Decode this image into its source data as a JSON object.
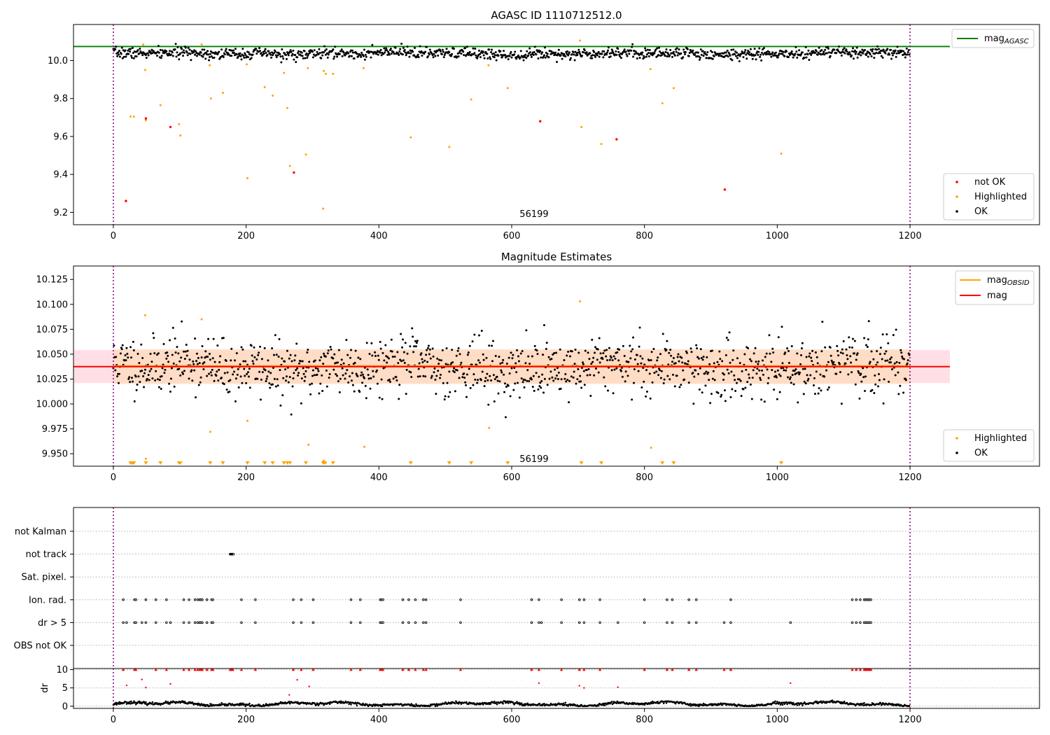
{
  "colors": {
    "ok": "#000000",
    "highlighted": "#ffa500",
    "not_ok": "#ff0000",
    "mag_agasc": "#008000",
    "mag_obsid": "#ffa500",
    "mag": "#ff0000",
    "band_obsid": "#ffdab9",
    "band_mag": "#ffc0cb",
    "period_boundary": "#800080"
  },
  "chart_data": [
    {
      "type": "scatter",
      "title": "AGASC ID 1110712512.0",
      "xlabel": "",
      "ylabel": "",
      "xlim": [
        -60,
        1395
      ],
      "ylim": [
        9.135,
        10.19
      ],
      "x_ticks": [
        0,
        200,
        400,
        600,
        800,
        1000,
        1200
      ],
      "x_tick_labels": [
        "0",
        "200",
        "400",
        "600",
        "800",
        "1000",
        "1200"
      ],
      "y_ticks": [
        9.2,
        9.4,
        9.6,
        9.8,
        10.0
      ],
      "y_tick_labels": [
        "9.2",
        "9.4",
        "9.6",
        "9.8",
        "10.0"
      ],
      "grid": false,
      "legend_placement_lines": "top-right",
      "legend_placement_points": "bottom-right",
      "annotation": {
        "text": "56199",
        "x": 600,
        "y": 9.16
      },
      "period_boundaries": [
        0,
        1200
      ],
      "lines": [
        {
          "name": "mag_AGASC",
          "label_main": "mag",
          "label_sub": "AGASC",
          "y": 10.074,
          "x_range": [
            -60,
            1260
          ],
          "color": "#008000"
        }
      ],
      "series": [
        {
          "name": "not OK",
          "color": "#ff0000",
          "points": [
            [
              19,
              9.26
            ],
            [
              49,
              9.695
            ],
            [
              86,
              9.65
            ],
            [
              272,
              9.41
            ],
            [
              643,
              9.68
            ],
            [
              758,
              9.585
            ],
            [
              921,
              9.32
            ]
          ]
        },
        {
          "name": "Highlighted",
          "color": "#ffa500",
          "points": [
            [
              26,
              9.705
            ],
            [
              31,
              9.705
            ],
            [
              45,
              10.085
            ],
            [
              48,
              9.95
            ],
            [
              49,
              9.685
            ],
            [
              71,
              9.765
            ],
            [
              99,
              9.665
            ],
            [
              101,
              9.605
            ],
            [
              133,
              10.085
            ],
            [
              145,
              9.975
            ],
            [
              147,
              9.8
            ],
            [
              165,
              9.83
            ],
            [
              201,
              9.98
            ],
            [
              202,
              9.38
            ],
            [
              228,
              9.86
            ],
            [
              240,
              9.815
            ],
            [
              257,
              9.935
            ],
            [
              262,
              9.75
            ],
            [
              266,
              9.445
            ],
            [
              290,
              9.505
            ],
            [
              293,
              9.96
            ],
            [
              316,
              9.22
            ],
            [
              317,
              9.945
            ],
            [
              320,
              9.93
            ],
            [
              331,
              9.93
            ],
            [
              377,
              9.96
            ],
            [
              448,
              9.595
            ],
            [
              506,
              9.545
            ],
            [
              539,
              9.795
            ],
            [
              565,
              9.975
            ],
            [
              594,
              9.855
            ],
            [
              703,
              10.105
            ],
            [
              705,
              9.65
            ],
            [
              735,
              9.56
            ],
            [
              809,
              9.955
            ],
            [
              827,
              9.775
            ],
            [
              844,
              9.855
            ],
            [
              1006,
              9.51
            ]
          ]
        },
        {
          "name": "OK",
          "color": "#000000",
          "generated": {
            "count": 1200,
            "x_range": [
              0,
              1200
            ],
            "y_center": 10.037,
            "y_spread": 0.017
          }
        }
      ]
    },
    {
      "type": "scatter",
      "title": "Magnitude Estimates",
      "xlabel": "",
      "ylabel": "",
      "xlim": [
        -60,
        1395
      ],
      "ylim": [
        9.9375,
        10.1385
      ],
      "x_ticks": [
        0,
        200,
        400,
        600,
        800,
        1000,
        1200
      ],
      "x_tick_labels": [
        "0",
        "200",
        "400",
        "600",
        "800",
        "1000",
        "1200"
      ],
      "y_ticks": [
        9.95,
        9.975,
        10.0,
        10.025,
        10.05,
        10.075,
        10.1,
        10.125
      ],
      "y_tick_labels": [
        "9.950",
        "9.975",
        "10.000",
        "10.025",
        "10.050",
        "10.075",
        "10.100",
        "10.125"
      ],
      "grid": false,
      "legend_placement_lines": "top-right",
      "legend_placement_points": "bottom-right",
      "annotation": {
        "text": "56199",
        "x": 600,
        "y": 9.944
      },
      "period_boundaries": [
        0,
        1200
      ],
      "bands": [
        {
          "name": "mag band",
          "y_range": [
            10.021,
            10.054
          ],
          "x_range": [
            -60,
            1260
          ],
          "color": "#ffc0cb",
          "opacity": 0.5
        },
        {
          "name": "mag_OBSID band",
          "y_range": [
            10.02,
            10.055
          ],
          "x_range": [
            0,
            1200
          ],
          "color": "#ffdab9",
          "opacity": 0.7
        }
      ],
      "lines": [
        {
          "name": "mag_OBSID",
          "label_main": "mag",
          "label_sub": "OBSID",
          "y": 10.0375,
          "x_range": [
            0,
            1200
          ],
          "color": "#ffa500"
        },
        {
          "name": "mag",
          "label_main": "mag",
          "label_sub": "",
          "y": 10.0375,
          "x_range": [
            -60,
            1260
          ],
          "color": "#ff0000"
        }
      ],
      "series": [
        {
          "name": "Highlighted",
          "color": "#ffa500",
          "points": [
            [
              48,
              10.089
            ],
            [
              49,
              9.945
            ],
            [
              133,
              10.085
            ],
            [
              146,
              9.972
            ],
            [
              202,
              9.983
            ],
            [
              294,
              9.959
            ],
            [
              317,
              9.943
            ],
            [
              320,
              9.941
            ],
            [
              378,
              9.957
            ],
            [
              566,
              9.976
            ],
            [
              703,
              10.103
            ],
            [
              810,
              9.956
            ]
          ]
        },
        {
          "name": "Highlighted_below_range",
          "color": "#ffa500",
          "x": [
            26,
            28,
            30,
            31,
            49,
            71,
            99,
            101,
            146,
            165,
            202,
            228,
            240,
            257,
            262,
            266,
            290,
            316,
            318,
            331,
            448,
            506,
            539,
            594,
            705,
            735,
            827,
            844,
            1006
          ]
        },
        {
          "name": "OK",
          "color": "#000000",
          "generated": {
            "count": 1200,
            "x_range": [
              0,
              1200
            ],
            "y_center": 10.037,
            "y_spread": 0.017
          }
        }
      ]
    },
    {
      "type": "scatter",
      "title": "",
      "xlabel": "",
      "ylabel": "",
      "xlim": [
        -60,
        1395
      ],
      "categories": [
        "not Kalman",
        "not track",
        "Sat. pixel.",
        "Ion. rad.",
        "dr > 5",
        "OBS not OK"
      ],
      "grid": "horizontal dotted",
      "period_boundaries": [
        0,
        1200
      ],
      "flags": {
        "not Kalman": [],
        "not track": [
          176,
          177,
          178,
          179,
          180,
          181
        ],
        "Sat. pixel.": [],
        "Ion. rad.": [
          15,
          32,
          34,
          49,
          64,
          80,
          106,
          114,
          123,
          127,
          130,
          132,
          134,
          141,
          148,
          150,
          193,
          214,
          271,
          283,
          301,
          358,
          372,
          402,
          404,
          406,
          436,
          445,
          455,
          467,
          471,
          523,
          630,
          641,
          675,
          702,
          709,
          733,
          800,
          834,
          842,
          867,
          878,
          930,
          1113,
          1119,
          1125,
          1131,
          1133,
          1135,
          1137,
          1139,
          1141
        ],
        "dr > 5": [
          15,
          20,
          32,
          34,
          43,
          49,
          64,
          80,
          86,
          106,
          114,
          123,
          127,
          130,
          132,
          134,
          141,
          148,
          150,
          193,
          214,
          271,
          283,
          301,
          358,
          372,
          402,
          404,
          406,
          436,
          445,
          455,
          467,
          471,
          523,
          630,
          641,
          645,
          675,
          702,
          709,
          733,
          760,
          800,
          834,
          842,
          867,
          878,
          920,
          930,
          1020,
          1113,
          1119,
          1125,
          1131,
          1133,
          1135,
          1137,
          1139,
          1141
        ],
        "OBS not OK": []
      }
    },
    {
      "type": "scatter",
      "title": "",
      "xlabel": "",
      "ylabel": "dr",
      "xlim": [
        -60,
        1395
      ],
      "ylim": [
        -0.6,
        10.3
      ],
      "x_ticks": [
        0,
        200,
        400,
        600,
        800,
        1000,
        1200
      ],
      "x_tick_labels": [
        "0",
        "200",
        "400",
        "600",
        "800",
        "1000",
        "1200"
      ],
      "y_ticks": [
        0,
        5,
        10
      ],
      "y_tick_labels": [
        "0",
        "5",
        "10"
      ],
      "grid": "horizontal dotted",
      "period_boundaries": [
        0,
        1200
      ],
      "series": [
        {
          "name": "dr > 5 (capped)",
          "color": "#ff0000",
          "marker": "triangle",
          "x": [
            15,
            32,
            34,
            64,
            80,
            106,
            114,
            123,
            127,
            130,
            132,
            134,
            141,
            148,
            150,
            176,
            177,
            178,
            179,
            180,
            193,
            214,
            271,
            283,
            301,
            358,
            372,
            402,
            404,
            406,
            436,
            445,
            455,
            467,
            471,
            523,
            630,
            641,
            675,
            702,
            709,
            733,
            800,
            834,
            842,
            867,
            878,
            920,
            930,
            1113,
            1119,
            1125,
            1131,
            1133,
            1135,
            1137,
            1139,
            1141
          ]
        },
        {
          "name": "dr > 5",
          "color": "#ff0000",
          "points": [
            [
              20,
              5.7
            ],
            [
              43,
              7.3
            ],
            [
              49,
              5.1
            ],
            [
              86,
              6.1
            ],
            [
              265,
              3.1
            ],
            [
              277,
              7.2
            ],
            [
              295,
              5.4
            ],
            [
              641,
              6.3
            ],
            [
              702,
              5.6
            ],
            [
              709,
              5.0
            ],
            [
              760,
              5.2
            ],
            [
              1020,
              6.3
            ]
          ]
        },
        {
          "name": "dr",
          "color": "#000000",
          "generated": {
            "count": 1200,
            "x_range": [
              0,
              1200
            ],
            "y_center": 0.6,
            "y_spread": 0.4
          }
        }
      ]
    }
  ]
}
